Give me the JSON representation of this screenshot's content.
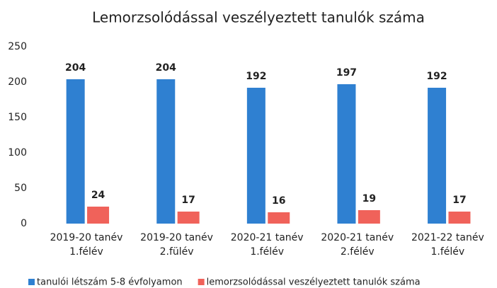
{
  "chart_data": {
    "type": "bar",
    "title": "Lemorzsolódással veszélyeztett tanulók száma",
    "categories": [
      [
        "2019-20 tanév",
        "1.félév"
      ],
      [
        "2019-20 tanév",
        "2.fülév"
      ],
      [
        "2020-21 tanév",
        "1.félév"
      ],
      [
        "2020-21 tanév",
        "2.félév"
      ],
      [
        "2021-22  tanév",
        "1.félév"
      ]
    ],
    "series": [
      {
        "name": "tanulói létszám 5-8 évfolyamon",
        "color": "#2f80d1",
        "values": [
          204,
          204,
          192,
          197,
          192
        ]
      },
      {
        "name": "lemorzsolódással veszélyeztett tanulók száma",
        "color": "#f0625a",
        "values": [
          24,
          17,
          16,
          19,
          17
        ]
      }
    ],
    "ylim": [
      0,
      250
    ],
    "yticks": [
      0,
      50,
      100,
      150,
      200,
      250
    ],
    "grid": false,
    "legend": "bottom"
  }
}
